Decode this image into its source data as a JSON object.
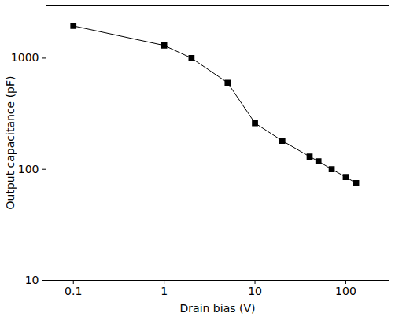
{
  "chart_data": {
    "type": "line",
    "xlabel": "Drain bias (V)",
    "ylabel": "Output capacitance (pF)",
    "log": true,
    "x": [
      0.1,
      1,
      2,
      5,
      10,
      20,
      40,
      50,
      70,
      100,
      130
    ],
    "series": [
      {
        "color": "#000000",
        "marker": "square",
        "line_style": "solid",
        "values": [
          1950,
          1300,
          1000,
          600,
          260,
          180,
          130,
          118,
          100,
          85,
          75
        ]
      }
    ],
    "xlim": [
      0.05,
      300
    ],
    "xticks": [
      0.1,
      1,
      10,
      100
    ],
    "ylim": [
      10,
      3000
    ],
    "yticks": [
      10,
      100,
      1000
    ],
    "grid": false
  }
}
